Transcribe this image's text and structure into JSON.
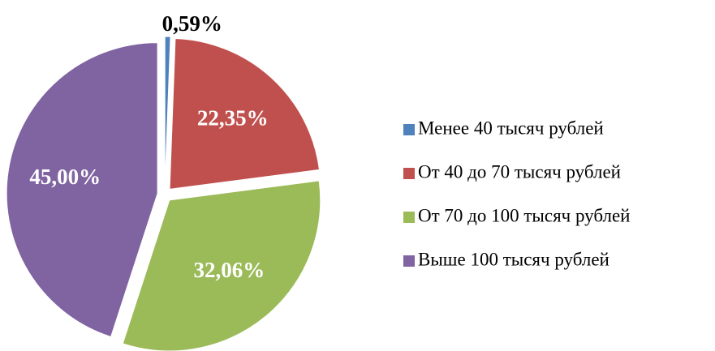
{
  "chart_data": {
    "type": "pie",
    "categories": [
      "Менее 40 тысяч рублей",
      "От 40 до 70 тысяч рублей",
      "От 70 до 100 тысяч рублей",
      "Выше 100 тысяч рублей"
    ],
    "values": [
      0.59,
      22.35,
      32.06,
      45.0
    ],
    "value_labels": [
      "0,59%",
      "22,35%",
      "32,06%",
      "45,00%"
    ],
    "colors": [
      "#4f81bd",
      "#c0504d",
      "#9bbb59",
      "#8064a2"
    ],
    "legend": "right"
  }
}
